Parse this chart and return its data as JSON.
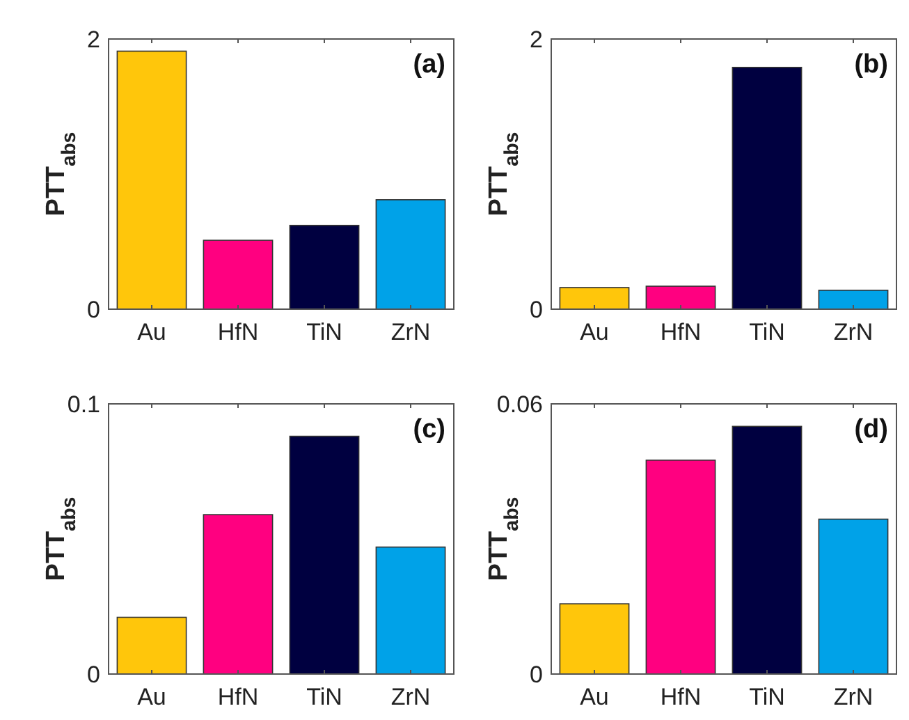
{
  "chart_data": [
    {
      "type": "bar",
      "categories": [
        "Au",
        "HfN",
        "TiN",
        "ZrN"
      ],
      "values": [
        1.91,
        0.51,
        0.62,
        0.81
      ],
      "colors": [
        "#ffc60b",
        "#ff0080",
        "#000040",
        "#00a2e8"
      ],
      "ylim": [
        0,
        2
      ],
      "yticks": [
        0,
        2
      ],
      "ylabel": "PTT$_{abs}$",
      "annotations": [
        "(a)"
      ]
    },
    {
      "type": "bar",
      "categories": [
        "Au",
        "HfN",
        "TiN",
        "ZrN"
      ],
      "values": [
        0.16,
        0.17,
        1.79,
        0.14
      ],
      "colors": [
        "#ffc60b",
        "#ff0080",
        "#000040",
        "#00a2e8"
      ],
      "ylim": [
        0,
        2
      ],
      "yticks": [
        0,
        2
      ],
      "ylabel": "PTT$_{abs}$",
      "annotations": [
        "(b)"
      ]
    },
    {
      "type": "bar",
      "categories": [
        "Au",
        "HfN",
        "TiN",
        "ZrN"
      ],
      "values": [
        0.021,
        0.059,
        0.088,
        0.047
      ],
      "colors": [
        "#ffc60b",
        "#ff0080",
        "#000040",
        "#00a2e8"
      ],
      "ylim": [
        0,
        0.1
      ],
      "yticks": [
        0,
        0.1
      ],
      "ylabel": "PTT$_{abs}$",
      "annotations": [
        "(c)"
      ]
    },
    {
      "type": "bar",
      "categories": [
        "Au",
        "HfN",
        "TiN",
        "ZrN"
      ],
      "values": [
        0.0156,
        0.0475,
        0.055,
        0.0344
      ],
      "colors": [
        "#ffc60b",
        "#ff0080",
        "#000040",
        "#00a2e8"
      ],
      "ylim": [
        0,
        0.06
      ],
      "yticks": [
        0,
        0.06
      ],
      "ylabel": "PTT$_{abs}$",
      "annotations": [
        "(d)"
      ]
    }
  ]
}
